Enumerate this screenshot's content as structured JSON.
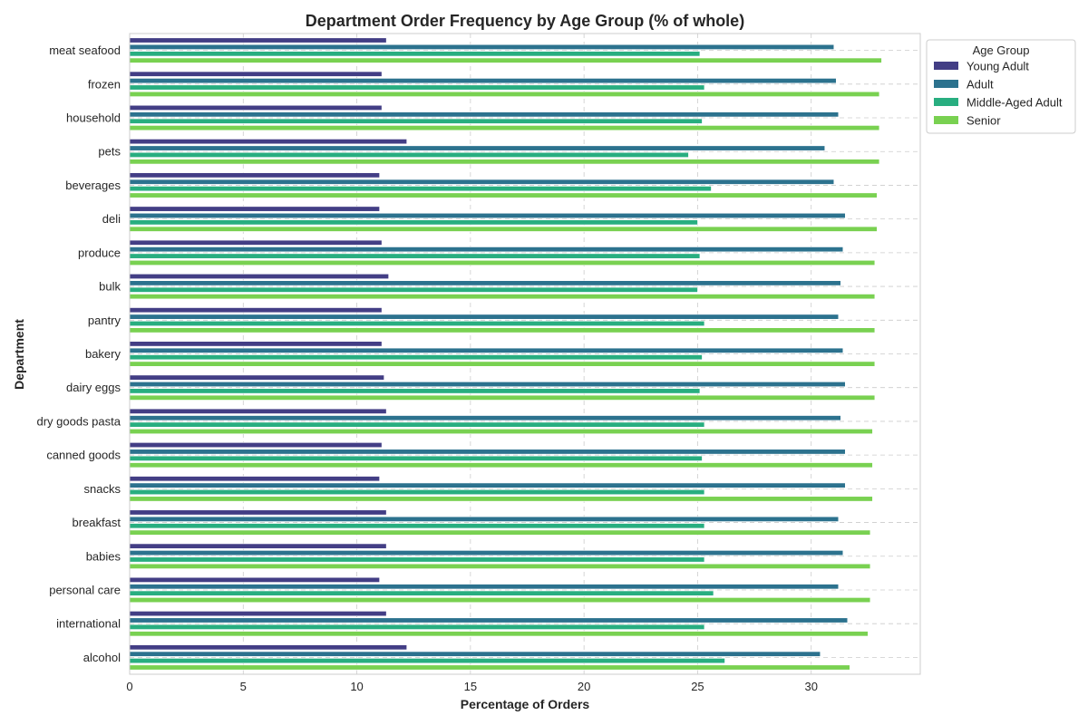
{
  "chart_data": {
    "type": "bar",
    "orientation": "horizontal",
    "title": "Department Order Frequency by Age Group (% of whole)",
    "xlabel": "Percentage of Orders",
    "ylabel": "Department",
    "xlim": [
      0,
      34.8
    ],
    "xticks": [
      0,
      5,
      10,
      15,
      20,
      25,
      30
    ],
    "grid": true,
    "legend_title": "Age Group",
    "legend_position": "upper-right-outside",
    "categories": [
      "meat seafood",
      "frozen",
      "household",
      "pets",
      "beverages",
      "deli",
      "produce",
      "bulk",
      "pantry",
      "bakery",
      "dairy eggs",
      "dry goods pasta",
      "canned goods",
      "snacks",
      "breakfast",
      "babies",
      "personal care",
      "international",
      "alcohol"
    ],
    "series": [
      {
        "name": "Young Adult",
        "color": "#433e85",
        "values": [
          11.3,
          11.1,
          11.1,
          12.2,
          11.0,
          11.0,
          11.1,
          11.4,
          11.1,
          11.1,
          11.2,
          11.3,
          11.1,
          11.0,
          11.3,
          11.3,
          11.0,
          11.3,
          12.2
        ]
      },
      {
        "name": "Adult",
        "color": "#2c728e",
        "values": [
          31.0,
          31.1,
          31.2,
          30.6,
          31.0,
          31.5,
          31.4,
          31.3,
          31.2,
          31.4,
          31.5,
          31.3,
          31.5,
          31.5,
          31.2,
          31.4,
          31.2,
          31.6,
          30.4
        ]
      },
      {
        "name": "Middle-Aged Adult",
        "color": "#28ae80",
        "values": [
          25.1,
          25.3,
          25.2,
          24.6,
          25.6,
          25.0,
          25.1,
          25.0,
          25.3,
          25.2,
          25.1,
          25.3,
          25.2,
          25.3,
          25.3,
          25.3,
          25.7,
          25.3,
          26.2
        ]
      },
      {
        "name": "Senior",
        "color": "#79d151",
        "values": [
          33.1,
          33.0,
          33.0,
          33.0,
          32.9,
          32.9,
          32.8,
          32.8,
          32.8,
          32.8,
          32.8,
          32.7,
          32.7,
          32.7,
          32.6,
          32.6,
          32.6,
          32.5,
          31.7
        ]
      }
    ]
  }
}
